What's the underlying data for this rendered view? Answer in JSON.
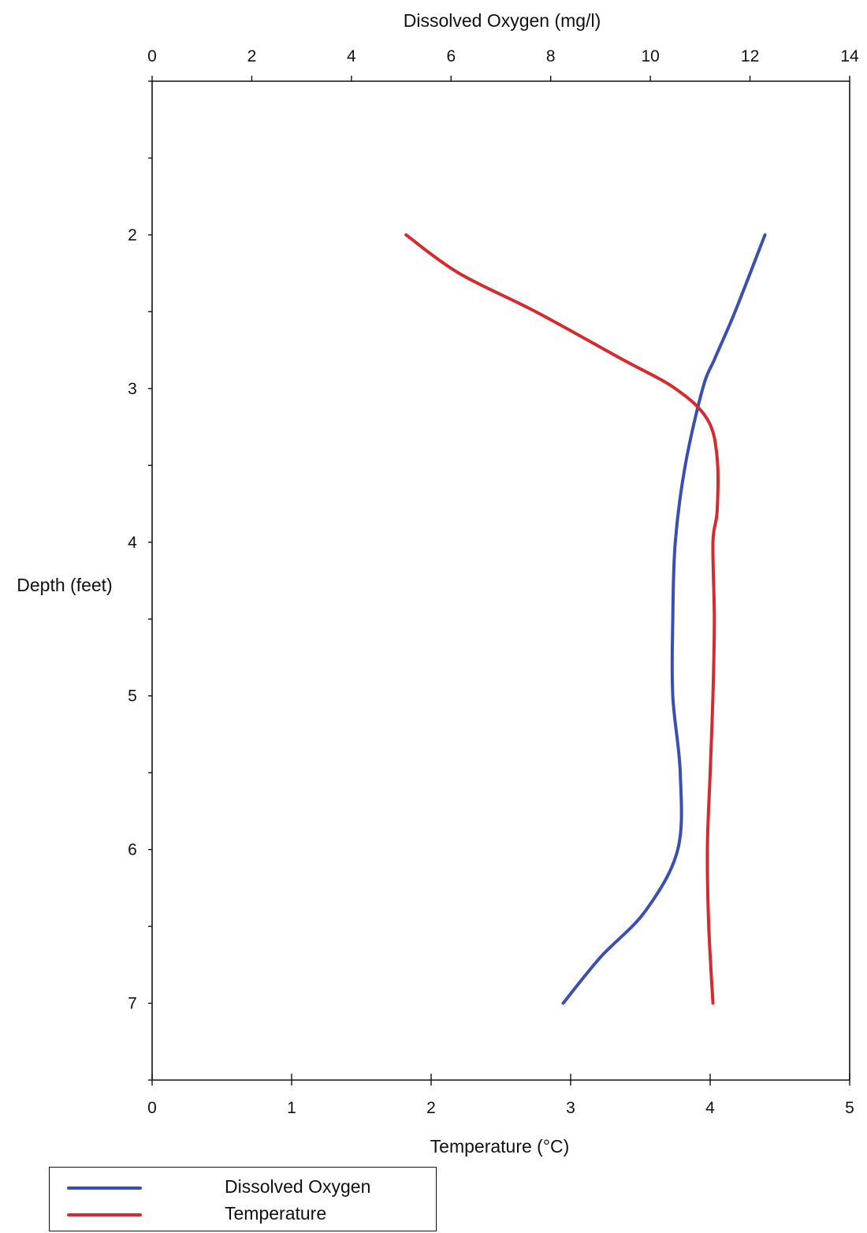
{
  "chart_data": {
    "type": "line",
    "orientation": "vertical-profile",
    "grid": false,
    "legend_position": "bottom-left",
    "y_axis": {
      "label": "Depth (feet)",
      "lim": [
        1.0,
        7.5
      ],
      "inverted": true,
      "ticks": [
        2,
        3,
        4,
        5,
        6,
        7
      ],
      "tick_labels": [
        "2",
        "3",
        "4",
        "5",
        "6",
        "7"
      ],
      "minor_ticks": [
        1,
        1.5,
        2.5,
        3.5,
        4.5,
        5.5,
        6.5,
        7.5
      ]
    },
    "x_axis_top": {
      "label": "Dissolved Oxygen (mg/l)",
      "lim": [
        0,
        14
      ],
      "ticks": [
        0,
        2,
        4,
        6,
        8,
        10,
        12,
        14
      ],
      "tick_labels": [
        "0",
        "2",
        "4",
        "6",
        "8",
        "10",
        "12",
        "14"
      ]
    },
    "x_axis_bottom": {
      "label": "Temperature (°C)",
      "lim": [
        0,
        5
      ],
      "ticks": [
        0,
        1,
        2,
        3,
        4,
        5
      ],
      "tick_labels": [
        "0",
        "1",
        "2",
        "3",
        "4",
        "5"
      ]
    },
    "series": [
      {
        "name": "Dissolved Oxygen",
        "axis": "top",
        "color": "#3a4fb0",
        "points": [
          {
            "x": 12.3,
            "y": 2.0
          },
          {
            "x": 11.7,
            "y": 2.5
          },
          {
            "x": 11.3,
            "y": 2.8
          },
          {
            "x": 11.05,
            "y": 3.0
          },
          {
            "x": 10.7,
            "y": 3.5
          },
          {
            "x": 10.5,
            "y": 4.0
          },
          {
            "x": 10.45,
            "y": 4.5
          },
          {
            "x": 10.45,
            "y": 5.0
          },
          {
            "x": 10.6,
            "y": 5.5
          },
          {
            "x": 10.55,
            "y": 6.0
          },
          {
            "x": 9.9,
            "y": 6.4
          },
          {
            "x": 9.0,
            "y": 6.7
          },
          {
            "x": 8.25,
            "y": 7.0
          }
        ]
      },
      {
        "name": "Temperature",
        "axis": "bottom",
        "color": "#d42a30",
        "points": [
          {
            "x": 1.82,
            "y": 2.0
          },
          {
            "x": 2.2,
            "y": 2.25
          },
          {
            "x": 2.75,
            "y": 2.5
          },
          {
            "x": 3.35,
            "y": 2.8
          },
          {
            "x": 3.75,
            "y": 3.0
          },
          {
            "x": 3.98,
            "y": 3.2
          },
          {
            "x": 4.05,
            "y": 3.45
          },
          {
            "x": 4.05,
            "y": 3.8
          },
          {
            "x": 4.02,
            "y": 4.0
          },
          {
            "x": 4.03,
            "y": 4.5
          },
          {
            "x": 4.02,
            "y": 5.0
          },
          {
            "x": 4.0,
            "y": 5.5
          },
          {
            "x": 3.98,
            "y": 6.0
          },
          {
            "x": 3.99,
            "y": 6.5
          },
          {
            "x": 4.02,
            "y": 7.0
          }
        ]
      }
    ]
  },
  "legend": {
    "items": [
      {
        "label": "Dissolved Oxygen",
        "color": "#3a4fb0"
      },
      {
        "label": "Temperature",
        "color": "#d42a30"
      }
    ]
  }
}
